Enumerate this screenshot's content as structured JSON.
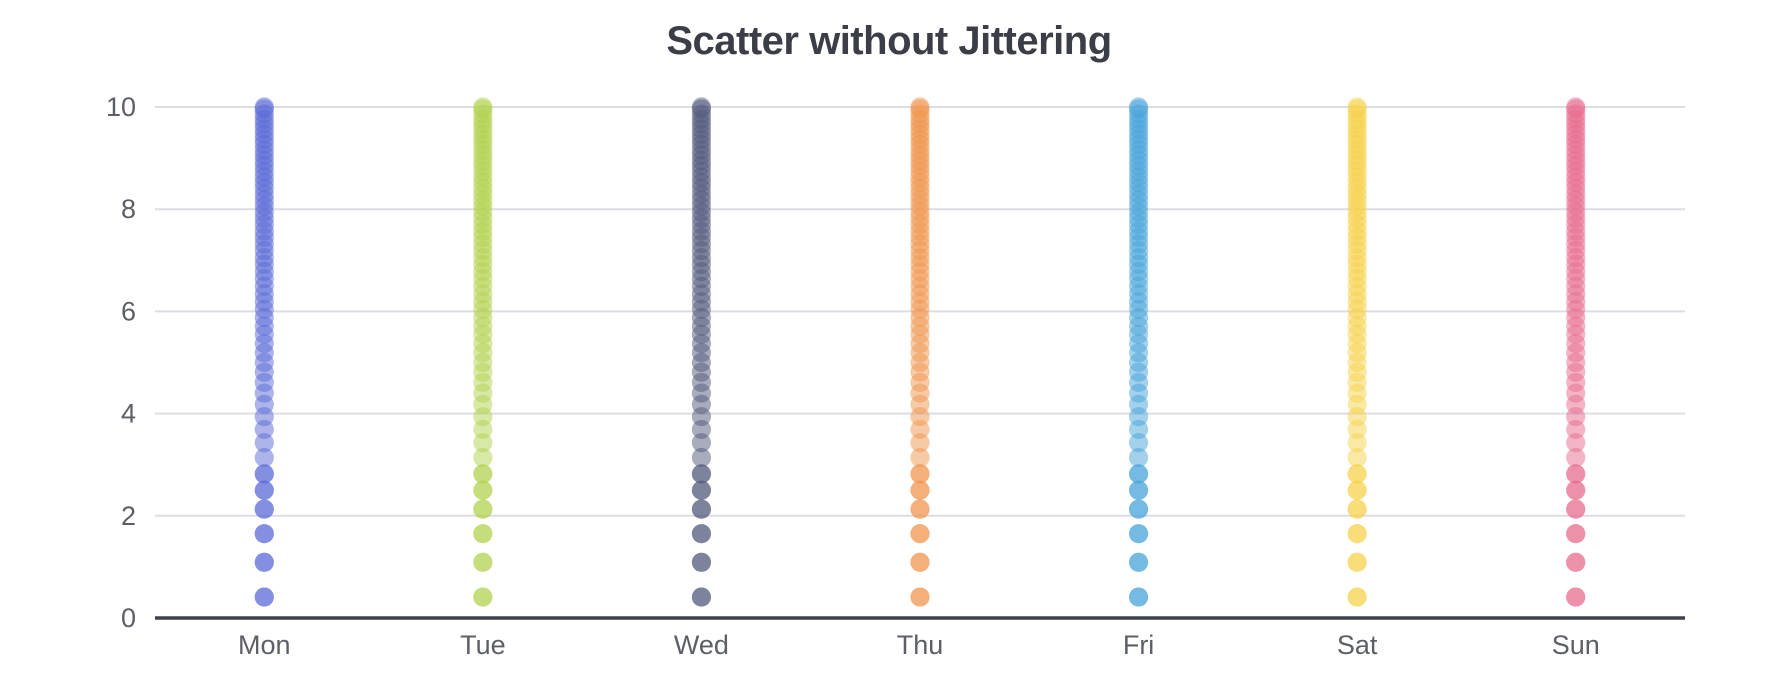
{
  "page": {
    "background": "#ffffff"
  },
  "chart_data": {
    "type": "scatter",
    "title": "Scatter without Jittering",
    "categories": [
      "Mon",
      "Tue",
      "Wed",
      "Thu",
      "Fri",
      "Sat",
      "Sun"
    ],
    "xlabel": "",
    "ylabel": "",
    "ylim": [
      0,
      10
    ],
    "y_ticks": [
      0,
      2,
      4,
      6,
      8,
      10
    ],
    "x_tick_labels": [
      "Mon",
      "Tue",
      "Wed",
      "Thu",
      "Fri",
      "Sat",
      "Sun"
    ],
    "grid": "horizontal-only",
    "legend": "none",
    "jitter": false,
    "marker": {
      "shape": "circle",
      "opacity": 0.5,
      "radius_px": 9.6
    },
    "series": [
      {
        "name": "Mon",
        "color": "#5a6ad6"
      },
      {
        "name": "Tue",
        "color": "#b1d24e"
      },
      {
        "name": "Wed",
        "color": "#525a7b"
      },
      {
        "name": "Thu",
        "color": "#f0964e"
      },
      {
        "name": "Fri",
        "color": "#48a3d9"
      },
      {
        "name": "Sat",
        "color": "#f6d14c"
      },
      {
        "name": "Sun",
        "color": "#e86b8e"
      }
    ],
    "values_shared_across_series": true,
    "values": [
      0.41,
      1.09,
      1.65,
      2.13,
      2.5,
      2.82,
      3.14,
      3.43,
      3.69,
      3.94,
      4.18,
      4.4,
      4.61,
      4.81,
      5.0,
      5.19,
      5.37,
      5.55,
      5.71,
      5.88,
      6.04,
      6.19,
      6.34,
      6.49,
      6.64,
      6.78,
      6.92,
      7.05,
      7.19,
      7.32,
      7.45,
      7.57,
      7.7,
      7.82,
      7.94,
      8.06,
      8.18,
      8.29,
      8.41,
      8.52,
      8.63,
      8.74,
      8.85,
      8.95,
      9.06,
      9.16,
      9.27,
      9.37,
      9.47,
      9.57,
      9.67,
      9.76,
      9.86,
      9.96,
      10.0
    ],
    "low_value_duplicate_count": 6
  },
  "axes": {
    "tick_label_color": "#5c6066",
    "axis_line_color": "#3f424a",
    "grid_line_color": "#dddde3",
    "title_color": "#3b3e46"
  }
}
